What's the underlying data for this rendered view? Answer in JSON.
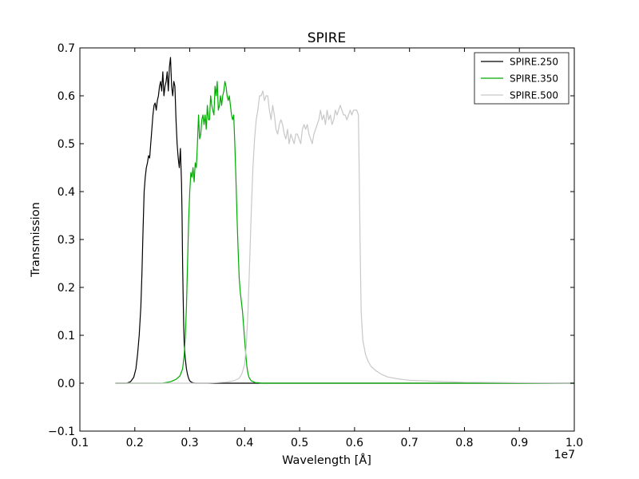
{
  "chart_data": {
    "type": "line",
    "title": "SPIRE",
    "xlabel": "Wavelength [Å]",
    "ylabel": "Transmission",
    "x_offset_label": "1e7",
    "xlim": [
      0.1,
      1.0
    ],
    "ylim": [
      -0.1,
      0.7
    ],
    "x_ticks": [
      0.1,
      0.2,
      0.3,
      0.4,
      0.5,
      0.6,
      0.7,
      0.8,
      0.9,
      1.0
    ],
    "x_tick_labels": [
      "0.1",
      "0.2",
      "0.3",
      "0.4",
      "0.5",
      "0.6",
      "0.7",
      "0.8",
      "0.9",
      "1.0"
    ],
    "y_ticks": [
      -0.1,
      0.0,
      0.1,
      0.2,
      0.3,
      0.4,
      0.5,
      0.6,
      0.7
    ],
    "y_tick_labels": [
      "−0.1",
      "0.0",
      "0.1",
      "0.2",
      "0.3",
      "0.4",
      "0.5",
      "0.6",
      "0.7"
    ],
    "grid": false,
    "legend_position": "top-right",
    "series": [
      {
        "name": "SPIRE.250",
        "color": "#000000",
        "x": [
          0.165,
          0.185,
          0.192,
          0.198,
          0.202,
          0.205,
          0.208,
          0.211,
          0.213,
          0.215,
          0.217,
          0.219,
          0.221,
          0.223,
          0.225,
          0.227,
          0.229,
          0.231,
          0.233,
          0.235,
          0.237,
          0.239,
          0.241,
          0.243,
          0.245,
          0.247,
          0.249,
          0.251,
          0.253,
          0.255,
          0.257,
          0.259,
          0.261,
          0.263,
          0.265,
          0.267,
          0.269,
          0.271,
          0.273,
          0.275,
          0.277,
          0.279,
          0.281,
          0.283,
          0.285,
          0.286,
          0.287,
          0.288,
          0.289,
          0.29,
          0.292,
          0.294,
          0.296,
          0.298,
          0.3,
          0.302,
          0.305,
          0.31,
          0.33,
          0.4,
          0.5,
          0.6,
          0.7,
          0.8,
          1.0
        ],
        "y": [
          0.0,
          0.0,
          0.003,
          0.012,
          0.03,
          0.06,
          0.1,
          0.16,
          0.23,
          0.32,
          0.4,
          0.43,
          0.45,
          0.46,
          0.475,
          0.47,
          0.5,
          0.53,
          0.56,
          0.58,
          0.585,
          0.57,
          0.59,
          0.6,
          0.62,
          0.63,
          0.61,
          0.65,
          0.6,
          0.62,
          0.63,
          0.65,
          0.61,
          0.66,
          0.68,
          0.62,
          0.6,
          0.63,
          0.62,
          0.55,
          0.5,
          0.47,
          0.45,
          0.49,
          0.42,
          0.35,
          0.25,
          0.18,
          0.12,
          0.08,
          0.05,
          0.03,
          0.018,
          0.01,
          0.005,
          0.003,
          0.001,
          0.0,
          0.0,
          0.0,
          0.0,
          0.0,
          0.0,
          0.0,
          0.0
        ]
      },
      {
        "name": "SPIRE.350",
        "color": "#00aa00",
        "x": [
          0.165,
          0.25,
          0.265,
          0.275,
          0.282,
          0.287,
          0.29,
          0.292,
          0.294,
          0.296,
          0.298,
          0.3,
          0.302,
          0.304,
          0.306,
          0.308,
          0.31,
          0.312,
          0.314,
          0.316,
          0.318,
          0.32,
          0.322,
          0.324,
          0.326,
          0.328,
          0.33,
          0.332,
          0.334,
          0.336,
          0.338,
          0.34,
          0.342,
          0.344,
          0.346,
          0.348,
          0.35,
          0.352,
          0.354,
          0.356,
          0.358,
          0.36,
          0.362,
          0.364,
          0.366,
          0.368,
          0.37,
          0.372,
          0.374,
          0.376,
          0.378,
          0.38,
          0.382,
          0.384,
          0.386,
          0.388,
          0.39,
          0.392,
          0.394,
          0.396,
          0.398,
          0.4,
          0.402,
          0.404,
          0.406,
          0.408,
          0.41,
          0.412,
          0.414,
          0.416,
          0.418,
          0.42,
          0.425,
          0.43,
          0.44,
          0.5,
          0.6,
          0.7,
          0.8,
          1.0
        ],
        "y": [
          0.0,
          0.0,
          0.003,
          0.008,
          0.015,
          0.03,
          0.06,
          0.1,
          0.16,
          0.25,
          0.34,
          0.4,
          0.44,
          0.43,
          0.45,
          0.42,
          0.46,
          0.45,
          0.5,
          0.56,
          0.51,
          0.52,
          0.55,
          0.56,
          0.54,
          0.56,
          0.53,
          0.58,
          0.55,
          0.55,
          0.6,
          0.58,
          0.57,
          0.56,
          0.62,
          0.6,
          0.63,
          0.57,
          0.58,
          0.6,
          0.58,
          0.6,
          0.61,
          0.63,
          0.62,
          0.6,
          0.59,
          0.6,
          0.58,
          0.56,
          0.55,
          0.56,
          0.5,
          0.43,
          0.35,
          0.28,
          0.22,
          0.19,
          0.17,
          0.15,
          0.12,
          0.09,
          0.06,
          0.035,
          0.02,
          0.012,
          0.008,
          0.005,
          0.004,
          0.003,
          0.002,
          0.001,
          0.001,
          0.0,
          0.0,
          0.0,
          0.0,
          0.0,
          0.0,
          0.0
        ]
      },
      {
        "name": "SPIRE.500",
        "color": "#c8c8c8",
        "x": [
          0.165,
          0.33,
          0.365,
          0.38,
          0.39,
          0.395,
          0.4,
          0.403,
          0.406,
          0.409,
          0.412,
          0.415,
          0.418,
          0.421,
          0.424,
          0.427,
          0.43,
          0.433,
          0.436,
          0.439,
          0.442,
          0.445,
          0.448,
          0.451,
          0.454,
          0.457,
          0.46,
          0.463,
          0.466,
          0.469,
          0.472,
          0.475,
          0.478,
          0.481,
          0.484,
          0.487,
          0.49,
          0.493,
          0.496,
          0.499,
          0.502,
          0.505,
          0.508,
          0.511,
          0.514,
          0.517,
          0.52,
          0.523,
          0.526,
          0.529,
          0.532,
          0.535,
          0.538,
          0.541,
          0.544,
          0.547,
          0.55,
          0.553,
          0.556,
          0.559,
          0.562,
          0.565,
          0.568,
          0.571,
          0.574,
          0.577,
          0.58,
          0.583,
          0.586,
          0.589,
          0.592,
          0.595,
          0.598,
          0.601,
          0.604,
          0.607,
          0.608,
          0.61,
          0.612,
          0.615,
          0.62,
          0.625,
          0.63,
          0.64,
          0.65,
          0.66,
          0.68,
          0.7,
          0.75,
          0.8,
          0.9,
          1.0
        ],
        "y": [
          0.0,
          0.0,
          0.002,
          0.005,
          0.01,
          0.02,
          0.04,
          0.08,
          0.15,
          0.25,
          0.36,
          0.45,
          0.51,
          0.55,
          0.57,
          0.6,
          0.6,
          0.61,
          0.59,
          0.6,
          0.6,
          0.57,
          0.55,
          0.58,
          0.56,
          0.53,
          0.52,
          0.54,
          0.55,
          0.54,
          0.52,
          0.51,
          0.53,
          0.5,
          0.52,
          0.51,
          0.5,
          0.52,
          0.52,
          0.51,
          0.5,
          0.53,
          0.54,
          0.53,
          0.54,
          0.52,
          0.51,
          0.5,
          0.52,
          0.53,
          0.54,
          0.55,
          0.57,
          0.55,
          0.56,
          0.54,
          0.57,
          0.55,
          0.56,
          0.54,
          0.55,
          0.57,
          0.56,
          0.57,
          0.58,
          0.57,
          0.56,
          0.56,
          0.55,
          0.56,
          0.57,
          0.56,
          0.57,
          0.57,
          0.57,
          0.56,
          0.48,
          0.3,
          0.15,
          0.09,
          0.06,
          0.045,
          0.035,
          0.025,
          0.018,
          0.013,
          0.009,
          0.006,
          0.004,
          0.002,
          0.001,
          0.0
        ]
      }
    ]
  }
}
